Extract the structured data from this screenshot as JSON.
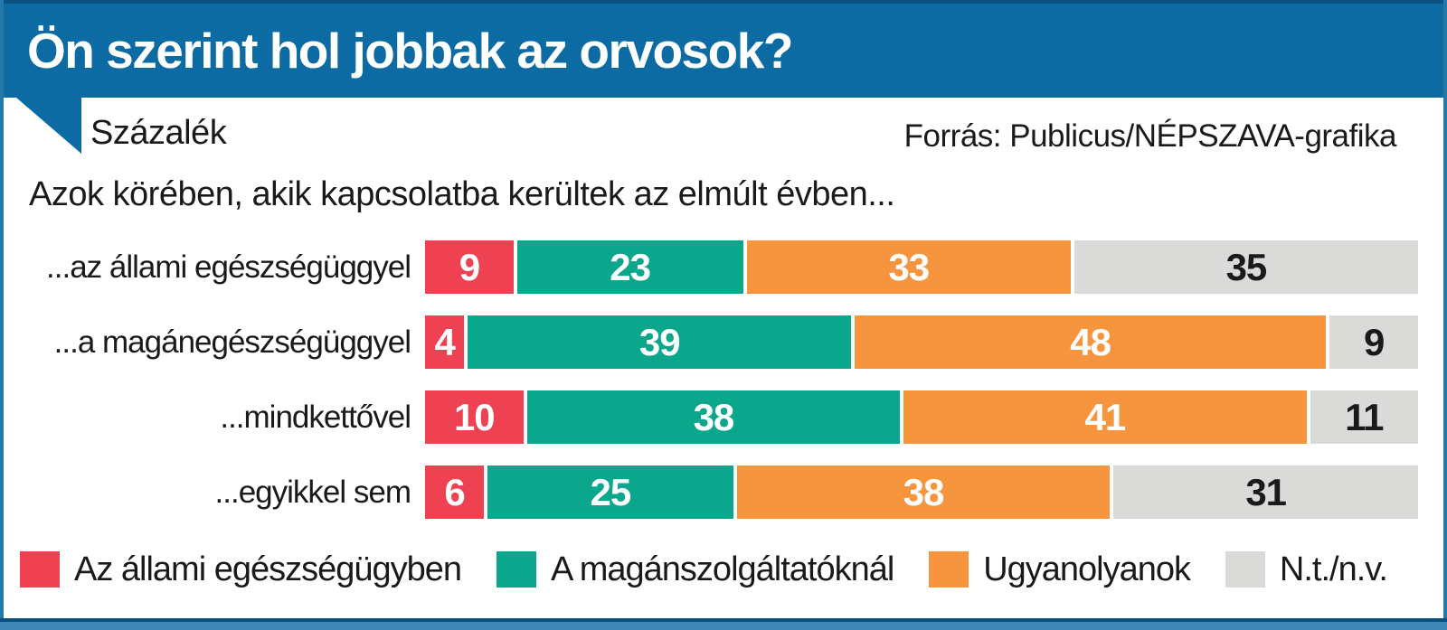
{
  "header": {
    "title": "Ön szerint hol jobbak az orvosok?"
  },
  "meta": {
    "unit_label": "Százalék",
    "source": "Forrás: Publicus/NÉPSZAVA-grafika"
  },
  "subtitle": "Azok körében, akik kapcsolatba kerültek az elmúlt évben...",
  "colors": {
    "header_blue": "#0d6ba3",
    "frame_blue": "#2579aa",
    "bottom_strip_blue": "#3e86b3",
    "red": "#ee4151",
    "teal": "#0aa78c",
    "orange": "#f6953e",
    "gray": "#dadad8",
    "text_dark": "#1a1a1a"
  },
  "chart_data": {
    "type": "bar",
    "orientation": "horizontal",
    "stacked": true,
    "unit": "percent",
    "xlim": [
      0,
      100
    ],
    "grid": false,
    "legend_position": "bottom",
    "value_labels": "inside-center",
    "categories": [
      "...az állami egészségüggyel",
      "...a magánegészségüggyel",
      "...mindkettővel",
      "...egyikkel sem"
    ],
    "series": [
      {
        "name": "Az állami egészségügyben",
        "color": "#ee4151",
        "text_color": "#ffffff",
        "values": [
          9,
          4,
          10,
          6
        ]
      },
      {
        "name": "A magánszolgáltatóknál",
        "color": "#0aa78c",
        "text_color": "#ffffff",
        "values": [
          23,
          39,
          38,
          25
        ]
      },
      {
        "name": "Ugyanolyanok",
        "color": "#f6953e",
        "text_color": "#ffffff",
        "values": [
          33,
          48,
          41,
          38
        ]
      },
      {
        "name": "N.t./n.v.",
        "color": "#dadad8",
        "text_color": "#1a1a1a",
        "values": [
          35,
          9,
          11,
          31
        ]
      }
    ]
  }
}
